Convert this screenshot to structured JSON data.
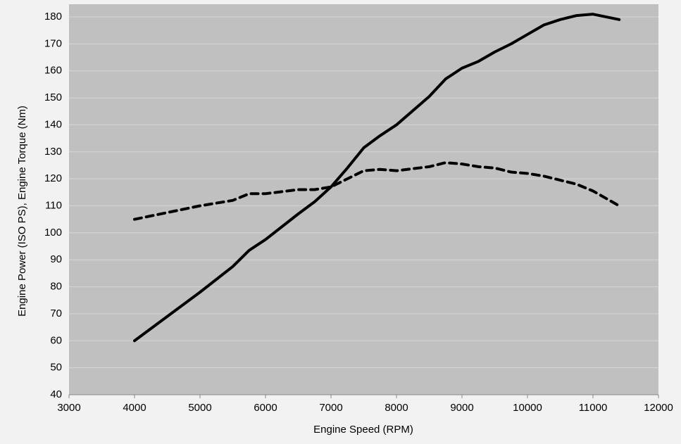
{
  "chart_data": {
    "type": "line",
    "x_label": "Engine Speed (RPM)",
    "y_label": "Engine Power (ISO PS), Engine Torque (Nm)",
    "x": [
      4000,
      4500,
      5000,
      5500,
      5750,
      6000,
      6500,
      6750,
      7000,
      7250,
      7500,
      7750,
      8000,
      8500,
      8750,
      9000,
      9250,
      9500,
      9750,
      10000,
      10250,
      10500,
      10750,
      11000,
      11400
    ],
    "series": [
      {
        "color": "#000000",
        "line_style": "solid",
        "values": [
          60,
          69,
          78,
          87.5,
          93.5,
          97.5,
          107,
          111.5,
          117,
          124,
          131.5,
          136,
          140,
          150.5,
          157,
          161,
          163.5,
          167,
          170,
          173.5,
          177,
          179,
          180.5,
          181,
          179
        ]
      },
      {
        "color": "#000000",
        "line_style": "dashed",
        "values": [
          105,
          107.5,
          110,
          112,
          114.5,
          114.5,
          116,
          116,
          117,
          120,
          123,
          123.5,
          123,
          124.5,
          126,
          125.5,
          124.5,
          124,
          122.5,
          122,
          121,
          119.5,
          118,
          115.5,
          110
        ]
      }
    ],
    "xlim": [
      3000,
      12000
    ],
    "xticks": [
      3000,
      4000,
      5000,
      6000,
      7000,
      8000,
      9000,
      10000,
      11000,
      12000
    ],
    "ylim": [
      40,
      180
    ],
    "yticks": [
      40,
      50,
      60,
      70,
      80,
      90,
      100,
      110,
      120,
      130,
      140,
      150,
      160,
      170,
      180
    ],
    "grid": true
  }
}
